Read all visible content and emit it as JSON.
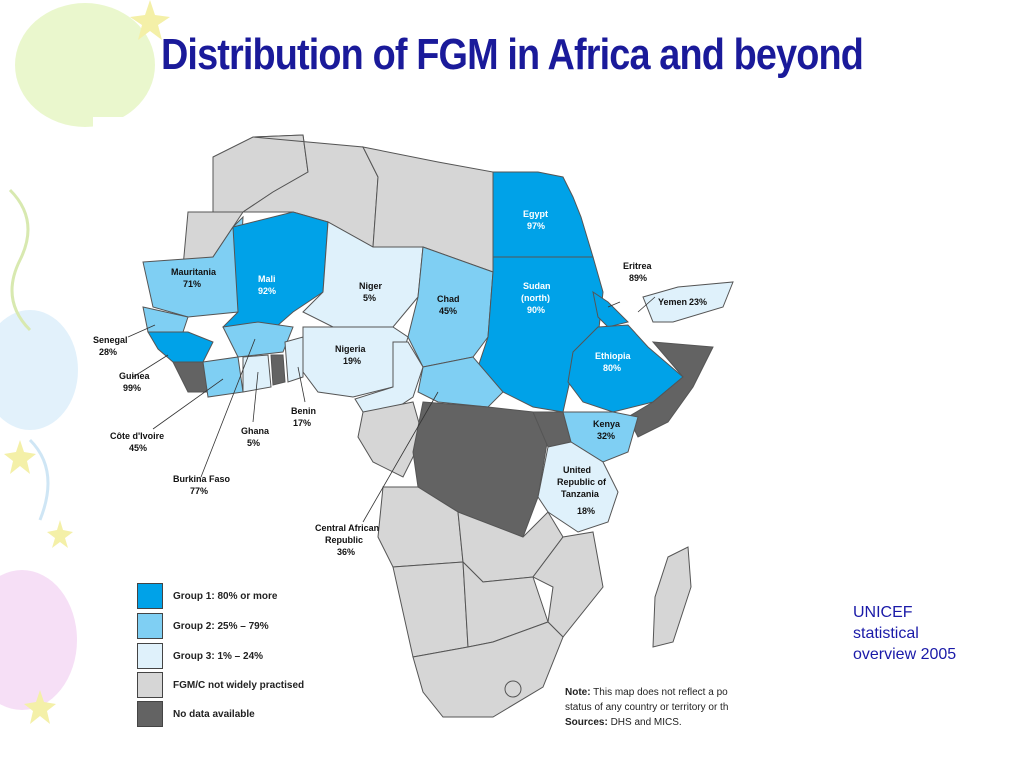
{
  "title": "Distribution of FGM in Africa and beyond",
  "source_credit": {
    "line1": "UNICEF",
    "line2": "statistical",
    "line3": "overview 2005"
  },
  "colors": {
    "group1": "#00a2e8",
    "group2": "#7fcff3",
    "group3": "#dff1fb",
    "not_practised": "#d6d6d6",
    "no_data": "#636363",
    "title": "#1a1a9a"
  },
  "legend": [
    {
      "label": "Group 1: 80% or more",
      "color": "#00a2e8"
    },
    {
      "label": "Group 2: 25% – 79%",
      "color": "#7fcff3"
    },
    {
      "label": "Group 3: 1% – 24%",
      "color": "#dff1fb"
    },
    {
      "label": "FGM/C not widely practised",
      "color": "#d6d6d6"
    },
    {
      "label": "No data available",
      "color": "#636363"
    }
  ],
  "note": {
    "note_label": "Note:",
    "note_text": "This map does not reflect a po",
    "note_line2": "status of any country or territory or th",
    "sources_label": "Sources:",
    "sources_text": "DHS and MICS."
  },
  "countries": {
    "egypt": {
      "name": "Egypt",
      "value": "97%"
    },
    "sudan": {
      "name1": "Sudan",
      "name2": "(north)",
      "value": "90%"
    },
    "eritrea": {
      "name": "Eritrea",
      "value": "89%"
    },
    "yemen": {
      "name": "Yemen",
      "value": "23%"
    },
    "ethiopia": {
      "name": "Ethiopia",
      "value": "80%"
    },
    "mali": {
      "name": "Mali",
      "value": "92%"
    },
    "mauritania": {
      "name": "Mauritania",
      "value": "71%"
    },
    "niger": {
      "name": "Niger",
      "value": "5%"
    },
    "chad": {
      "name": "Chad",
      "value": "45%"
    },
    "nigeria": {
      "name": "Nigeria",
      "value": "19%"
    },
    "senegal": {
      "name": "Senegal",
      "value": "28%"
    },
    "guinea": {
      "name": "Guinea",
      "value": "99%"
    },
    "cote_divoire": {
      "name": "Côte d'Ivoire",
      "value": "45%"
    },
    "burkina_faso": {
      "name": "Burkina Faso",
      "value": "77%"
    },
    "ghana": {
      "name": "Ghana",
      "value": "5%"
    },
    "benin": {
      "name": "Benin",
      "value": "17%"
    },
    "kenya": {
      "name": "Kenya",
      "value": "32%"
    },
    "tanzania": {
      "name1": "United",
      "name2": "Republic of",
      "name3": "Tanzania",
      "value": "18%"
    },
    "car": {
      "name1": "Central African",
      "name2": "Republic",
      "value": "36%"
    }
  }
}
